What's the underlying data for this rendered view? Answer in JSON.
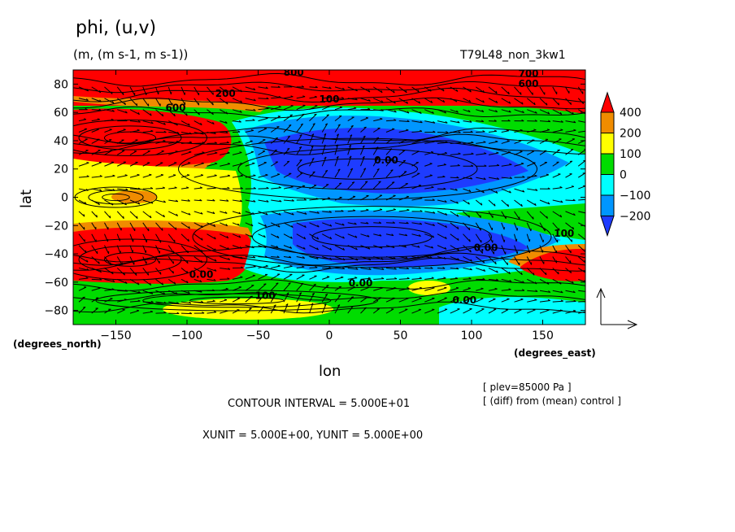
{
  "chart_data": {
    "type": "heatmap",
    "title": "phi, (u,v)",
    "units_line": "(m, (m s-1, m s-1))",
    "run_label": "T79L48_non_3kw1",
    "xlabel": "lon",
    "ylabel": "lat",
    "x_coord_label": "(degrees_east)",
    "y_coord_label": "(degrees_north)",
    "xlim": [
      -180,
      180
    ],
    "ylim": [
      -90,
      90
    ],
    "x_ticks": [
      -150,
      -100,
      -50,
      0,
      50,
      100,
      150
    ],
    "y_ticks": [
      80,
      60,
      40,
      20,
      0,
      -20,
      -40,
      -60,
      -80
    ],
    "colorbar": {
      "labels": [
        "400",
        "200",
        "100",
        "0",
        "−100",
        "−200"
      ],
      "colors": [
        "#ff0000",
        "#f08c00",
        "#ffff00",
        "#00dc00",
        "#00ffff",
        "#0096ff",
        "#1e3cff"
      ]
    },
    "contour_labels": [
      {
        "text": "800",
        "lon": -25,
        "lat": 86
      },
      {
        "text": "700",
        "lon": 140,
        "lat": 85
      },
      {
        "text": "600",
        "lon": 140,
        "lat": 78
      },
      {
        "text": "600",
        "lon": -108,
        "lat": 61
      },
      {
        "text": "200",
        "lon": -73,
        "lat": 71
      },
      {
        "text": "100",
        "lon": 0,
        "lat": 67
      },
      {
        "text": "100",
        "lon": -45,
        "lat": -72
      },
      {
        "text": "0.00",
        "lon": 40,
        "lat": 24
      },
      {
        "text": "0.00",
        "lon": -90,
        "lat": -57
      },
      {
        "text": "0.00",
        "lon": 22,
        "lat": -63
      },
      {
        "text": "0.00",
        "lon": 95,
        "lat": -75
      },
      {
        "text": "0.00",
        "lon": 110,
        "lat": -38
      },
      {
        "text": "100",
        "lon": 165,
        "lat": -28
      }
    ],
    "contour_interval_text": "CONTOUR INTERVAL = 5.000E+01",
    "vector_unit_text": "XUNIT = 5.000E+00, YUNIT = 5.000E+00",
    "plev_text": "[ plev=85000 Pa ]",
    "diff_text": "[ (diff) from (mean) control ]"
  }
}
